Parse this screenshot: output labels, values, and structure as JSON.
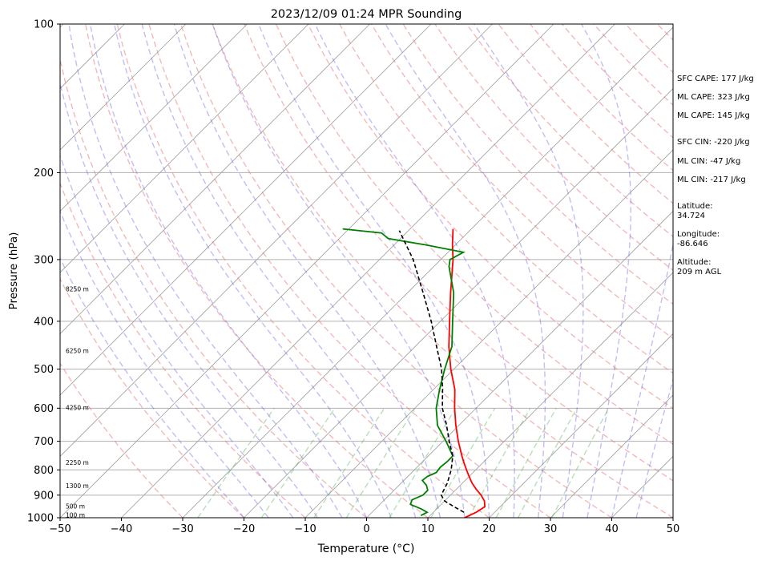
{
  "chart_data": {
    "type": "line",
    "chart_kind": "skew-t log-p sounding",
    "title": "2023/12/09 01:24 MPR Sounding",
    "xlabel": "Temperature (°C)",
    "ylabel": "Pressure (hPa)",
    "xlim": [
      -50,
      50
    ],
    "ylim": [
      1000,
      100
    ],
    "y_scale": "log",
    "x_ticks": [
      "−50",
      "−40",
      "−30",
      "−20",
      "−10",
      "0",
      "10",
      "20",
      "30",
      "40",
      "50"
    ],
    "x_tick_values": [
      -50,
      -40,
      -30,
      -20,
      -10,
      0,
      10,
      20,
      30,
      40,
      50
    ],
    "y_ticks": [
      "1000",
      "900",
      "800",
      "700",
      "600",
      "500",
      "400",
      "300",
      "200",
      "100"
    ],
    "y_tick_values": [
      1000,
      900,
      800,
      700,
      600,
      500,
      400,
      300,
      200,
      100
    ],
    "grid": true,
    "height_labels": [
      {
        "text": "100 m",
        "pressure": 990
      },
      {
        "text": "500 m",
        "pressure": 950
      },
      {
        "text": "1300 m",
        "pressure": 865
      },
      {
        "text": "2250 m",
        "pressure": 775
      },
      {
        "text": "4250 m",
        "pressure": 600
      },
      {
        "text": "6250 m",
        "pressure": 460
      },
      {
        "text": "8250 m",
        "pressure": 345
      }
    ],
    "series": [
      {
        "role": "temperature",
        "color": "#ff0000",
        "points": [
          {
            "p": 1000,
            "t": 16.0
          },
          {
            "p": 975,
            "t": 17.0
          },
          {
            "p": 950,
            "t": 17.5
          },
          {
            "p": 925,
            "t": 16.5
          },
          {
            "p": 900,
            "t": 15.0
          },
          {
            "p": 875,
            "t": 13.2
          },
          {
            "p": 850,
            "t": 11.5
          },
          {
            "p": 825,
            "t": 10.0
          },
          {
            "p": 800,
            "t": 8.5
          },
          {
            "p": 775,
            "t": 7.0
          },
          {
            "p": 750,
            "t": 5.5
          },
          {
            "p": 700,
            "t": 2.5
          },
          {
            "p": 650,
            "t": -0.5
          },
          {
            "p": 600,
            "t": -3.5
          },
          {
            "p": 550,
            "t": -6.5
          },
          {
            "p": 500,
            "t": -10.5
          },
          {
            "p": 450,
            "t": -14.5
          },
          {
            "p": 400,
            "t": -18.5
          },
          {
            "p": 350,
            "t": -23.0
          },
          {
            "p": 300,
            "t": -28.0
          },
          {
            "p": 280,
            "t": -30.5
          },
          {
            "p": 260,
            "t": -33.0
          }
        ]
      },
      {
        "role": "dewpoint",
        "color": "#008000",
        "points": [
          {
            "p": 990,
            "t": 8.5
          },
          {
            "p": 975,
            "t": 9.0
          },
          {
            "p": 960,
            "t": 7.5
          },
          {
            "p": 940,
            "t": 5.0
          },
          {
            "p": 920,
            "t": 4.5
          },
          {
            "p": 900,
            "t": 5.5
          },
          {
            "p": 880,
            "t": 5.5
          },
          {
            "p": 860,
            "t": 4.5
          },
          {
            "p": 840,
            "t": 3.0
          },
          {
            "p": 825,
            "t": 3.2
          },
          {
            "p": 810,
            "t": 4.0
          },
          {
            "p": 790,
            "t": 3.8
          },
          {
            "p": 770,
            "t": 4.0
          },
          {
            "p": 750,
            "t": 4.0
          },
          {
            "p": 700,
            "t": 0.5
          },
          {
            "p": 650,
            "t": -3.5
          },
          {
            "p": 600,
            "t": -6.5
          },
          {
            "p": 550,
            "t": -9.0
          },
          {
            "p": 500,
            "t": -11.5
          },
          {
            "p": 450,
            "t": -14.0
          },
          {
            "p": 400,
            "t": -18.0
          },
          {
            "p": 350,
            "t": -22.5
          },
          {
            "p": 310,
            "t": -27.5
          },
          {
            "p": 300,
            "t": -28.5
          },
          {
            "p": 290,
            "t": -27.5
          },
          {
            "p": 280,
            "t": -35.0
          },
          {
            "p": 272,
            "t": -42.0
          },
          {
            "p": 265,
            "t": -44.0
          },
          {
            "p": 260,
            "t": -51.0
          }
        ]
      },
      {
        "role": "parcel",
        "color": "#000000",
        "style": "dashed",
        "points": [
          {
            "p": 975,
            "t": 15.0
          },
          {
            "p": 950,
            "t": 12.5
          },
          {
            "p": 925,
            "t": 10.0
          },
          {
            "p": 900,
            "t": 8.5
          },
          {
            "p": 850,
            "t": 7.5
          },
          {
            "p": 800,
            "t": 6.0
          },
          {
            "p": 750,
            "t": 4.0
          },
          {
            "p": 700,
            "t": 1.0
          },
          {
            "p": 650,
            "t": -2.0
          },
          {
            "p": 600,
            "t": -5.5
          },
          {
            "p": 550,
            "t": -8.5
          },
          {
            "p": 500,
            "t": -12.0
          },
          {
            "p": 450,
            "t": -16.5
          },
          {
            "p": 400,
            "t": -21.5
          },
          {
            "p": 350,
            "t": -27.5
          },
          {
            "p": 300,
            "t": -34.5
          },
          {
            "p": 275,
            "t": -39.0
          },
          {
            "p": 262,
            "t": -41.5
          }
        ]
      }
    ]
  },
  "annotations": [
    {
      "id": "sfc-cape",
      "text": "SFC CAPE: 177 J/kg"
    },
    {
      "id": "ml-cape-1",
      "text": "ML CAPE: 323 J/kg"
    },
    {
      "id": "ml-cape-2",
      "text": "ML CAPE: 145 J/kg"
    },
    {
      "id": "sfc-cin",
      "text": "SFC CIN: -220 J/kg"
    },
    {
      "id": "ml-cin-1",
      "text": "ML CIN: -47 J/kg"
    },
    {
      "id": "ml-cin-2",
      "text": "ML CIN: -217 J/kg"
    }
  ],
  "location": {
    "latitude_label": "Latitude:",
    "latitude": "34.724",
    "longitude_label": "Longitude:",
    "longitude": "-86.646",
    "altitude_label": "Altitude:",
    "altitude": "209 m AGL"
  },
  "colors": {
    "temperature": "#ff0000",
    "dewpoint": "#008000",
    "parcel": "#000000",
    "dry_adiabat": "#e88080",
    "moist_adiabat": "#6a5ae0",
    "mixing_ratio": "#50b050",
    "isotherm": "#555555"
  }
}
